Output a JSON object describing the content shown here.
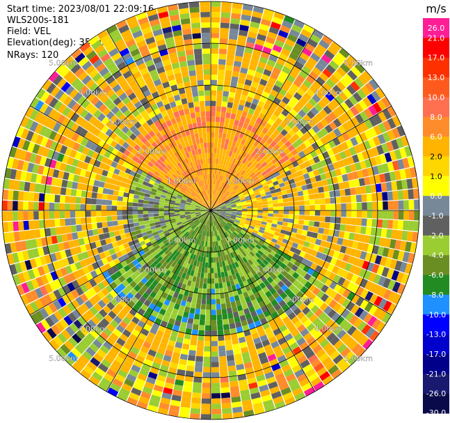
{
  "header": {
    "start_time": "Start time: 2023/08/01 22:09:16",
    "instrument": "WLS200s-181",
    "field": "Field: VEL",
    "elevation": "Elevation(deg): 35.30",
    "nrays": "NRays: 120"
  },
  "chart_data": {
    "type": "heatmap",
    "projection": "polar-ppi",
    "title": "",
    "field": "VEL",
    "units": "m/s",
    "n_rays": 120,
    "elevation_deg": 35.3,
    "range_rings_km": [
      1.0,
      2.0,
      3.0,
      4.0,
      5.0
    ],
    "max_range_km": 5.0,
    "ring_labels": [
      "1.00km",
      "2.00km",
      "3.00km",
      "4.00km",
      "5.00km"
    ],
    "radial_spokes_deg": [
      0,
      30,
      60,
      90,
      120,
      150,
      180,
      210,
      240,
      270,
      300,
      330
    ],
    "colorbar": {
      "label": "m/s",
      "tick_labels": [
        "26.0",
        "21.0",
        "17.0",
        "13.0",
        "10.0",
        "8.0",
        "6.0",
        "2.0",
        "1.0",
        "0.0",
        "-1.0",
        "-2.0",
        "-4.0",
        "-6.0",
        "-8.0",
        "-10.0",
        "-13.0",
        "-17.0",
        "-21.0",
        "-26.0",
        "-30.0"
      ],
      "bins": [
        {
          "min": 21.0,
          "max": 26.0,
          "color": "#ff1e96"
        },
        {
          "min": 17.0,
          "max": 21.0,
          "color": "#ff0000"
        },
        {
          "min": 13.0,
          "max": 17.0,
          "color": "#ff3000"
        },
        {
          "min": 10.0,
          "max": 13.0,
          "color": "#ff5a1e"
        },
        {
          "min": 8.0,
          "max": 10.0,
          "color": "#ff7050"
        },
        {
          "min": 6.0,
          "max": 8.0,
          "color": "#ff8c2a"
        },
        {
          "min": 2.0,
          "max": 6.0,
          "color": "#ffb400"
        },
        {
          "min": 1.0,
          "max": 2.0,
          "color": "#ffd700"
        },
        {
          "min": 0.0,
          "max": 1.0,
          "color": "#ffff00"
        },
        {
          "min": -1.0,
          "max": 0.0,
          "color": "#778899"
        },
        {
          "min": -2.0,
          "max": -1.0,
          "color": "#606060"
        },
        {
          "min": -4.0,
          "max": -2.0,
          "color": "#9acd32"
        },
        {
          "min": -6.0,
          "max": -4.0,
          "color": "#6b8e23"
        },
        {
          "min": -8.0,
          "max": -6.0,
          "color": "#228b22"
        },
        {
          "min": -10.0,
          "max": -8.0,
          "color": "#1e90ff"
        },
        {
          "min": -13.0,
          "max": -10.0,
          "color": "#0000ff"
        },
        {
          "min": -17.0,
          "max": -13.0,
          "color": "#0000cd"
        },
        {
          "min": -21.0,
          "max": -17.0,
          "color": "#00008b"
        },
        {
          "min": -26.0,
          "max": -21.0,
          "color": "#191970"
        },
        {
          "min": -30.0,
          "max": -26.0,
          "color": "#0a0a4a"
        }
      ]
    },
    "sectors": [
      {
        "azimuth_range_deg": [
          300,
          60
        ],
        "inner_km": 0.0,
        "outer_km": 2.5,
        "dominant_velocity_ms": 6.0
      },
      {
        "azimuth_range_deg": [
          60,
          120
        ],
        "inner_km": 0.0,
        "outer_km": 0.8,
        "dominant_velocity_ms": -1.5
      },
      {
        "azimuth_range_deg": [
          120,
          240
        ],
        "inner_km": 0.0,
        "outer_km": 3.0,
        "dominant_velocity_ms": -5.0
      },
      {
        "azimuth_range_deg": [
          240,
          300
        ],
        "inner_km": 0.0,
        "outer_km": 2.0,
        "dominant_velocity_ms": -2.5
      },
      {
        "azimuth_range_deg": [
          0,
          360
        ],
        "inner_km": 3.0,
        "outer_km": 5.0,
        "dominant_velocity_ms": 1.5
      }
    ]
  }
}
